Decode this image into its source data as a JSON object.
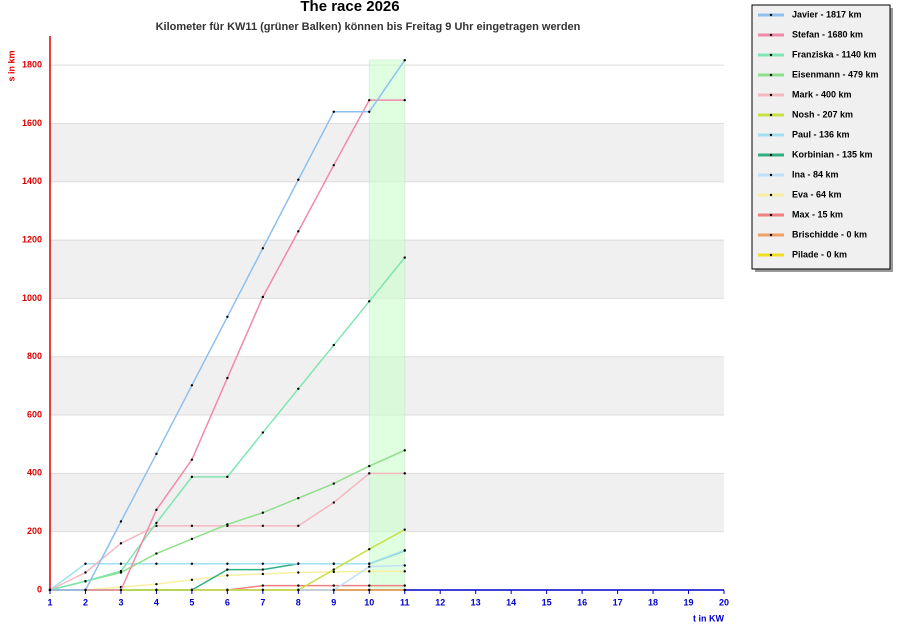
{
  "chart_data": {
    "type": "line",
    "title": "The race 2026",
    "subtitle": "Kilometer für KW11 (grüner Balken) können bis Freitag 9 Uhr eingetragen werden",
    "y_label": "s in km",
    "x_label": "t in KW",
    "x": [
      1,
      2,
      3,
      4,
      5,
      6,
      7,
      8,
      9,
      10,
      11
    ],
    "xlim": [
      1,
      20
    ],
    "xticks": [
      1,
      2,
      3,
      4,
      5,
      6,
      7,
      8,
      9,
      10,
      11,
      12,
      13,
      14,
      15,
      16,
      17,
      18,
      19,
      20
    ],
    "ylim": [
      0,
      1900
    ],
    "yticks": [
      0,
      200,
      400,
      600,
      800,
      1000,
      1200,
      1400,
      1600,
      1800
    ],
    "highlight": [
      10,
      11
    ],
    "highlight_color": "#ccffcc",
    "grid": true,
    "legend": "upper right",
    "series": [
      {
        "name": "Javier - 1817 km",
        "color": "#8ec0ee",
        "values": [
          0,
          0,
          235,
          467,
          702,
          937,
          1172,
          1407,
          1640,
          1640,
          1817
        ]
      },
      {
        "name": "Stefan - 1680 km",
        "color": "#f08aa8",
        "values": [
          0,
          0,
          0,
          275,
          447,
          727,
          1005,
          1230,
          1457,
          1680,
          1680
        ]
      },
      {
        "name": "Franziska - 1140 km",
        "color": "#7ee6b0",
        "values": [
          0,
          30,
          65,
          230,
          388,
          388,
          540,
          690,
          840,
          990,
          1140
        ]
      },
      {
        "name": "Eisenmann - 479 km",
        "color": "#8ee08a",
        "values": [
          0,
          30,
          60,
          125,
          175,
          225,
          265,
          315,
          365,
          425,
          479
        ]
      },
      {
        "name": "Mark - 400 km",
        "color": "#f4b8c0",
        "values": [
          0,
          60,
          160,
          220,
          220,
          220,
          220,
          220,
          300,
          400,
          400
        ]
      },
      {
        "name": "Nosh - 207 km",
        "color": "#c8e040",
        "values": [
          0,
          0,
          0,
          0,
          0,
          0,
          0,
          0,
          70,
          140,
          207
        ]
      },
      {
        "name": "Paul - 136 km",
        "color": "#a0e0f0",
        "values": [
          0,
          90,
          90,
          90,
          90,
          90,
          90,
          90,
          90,
          90,
          136
        ]
      },
      {
        "name": "Korbinian - 135 km",
        "color": "#30b080",
        "values": [
          0,
          0,
          0,
          0,
          0,
          70,
          70,
          90,
          90,
          90,
          135
        ]
      },
      {
        "name": "Ina - 84 km",
        "color": "#c0e0f8",
        "values": [
          0,
          0,
          0,
          0,
          0,
          0,
          0,
          0,
          0,
          80,
          84
        ]
      },
      {
        "name": "Eva - 64 km",
        "color": "#f8f0a0",
        "values": [
          0,
          0,
          10,
          20,
          35,
          50,
          55,
          60,
          62,
          64,
          64
        ]
      },
      {
        "name": "Max - 15 km",
        "color": "#f08080",
        "values": [
          0,
          0,
          0,
          0,
          0,
          0,
          15,
          15,
          15,
          15,
          15
        ]
      },
      {
        "name": "Brischidde - 0 km",
        "color": "#f0a060",
        "values": [
          0,
          0,
          0,
          0,
          0,
          0,
          0,
          0,
          0,
          0,
          0
        ]
      },
      {
        "name": "Pilade - 0 km",
        "color": "#f0e020",
        "values": [
          0,
          0,
          0,
          0,
          0,
          0,
          0,
          0,
          0,
          0,
          0
        ]
      }
    ]
  }
}
